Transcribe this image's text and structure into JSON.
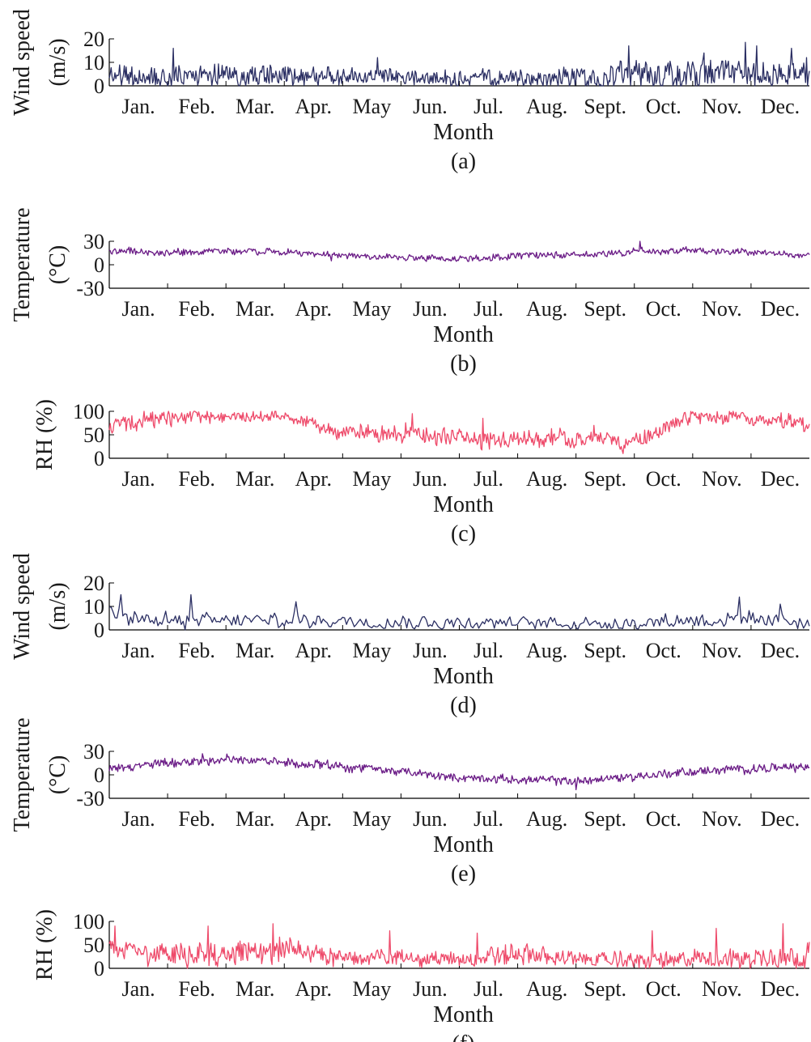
{
  "figure": {
    "month_ticks": [
      "Jan.",
      "Feb.",
      "Mar.",
      "Apr.",
      "May",
      "Jun.",
      "Jul.",
      "Aug.",
      "Sept.",
      "Oct.",
      "Nov.",
      "Dec."
    ],
    "colors": {
      "wind": "#2b2f63",
      "temperature": "#6a1b86",
      "rh": "#ee4a6a"
    }
  },
  "chart_data": [
    {
      "type": "line",
      "label": "(a)",
      "ylabel": [
        "Wind speed",
        "(m/s)"
      ],
      "xlabel": "Month",
      "yticks": [
        "20",
        "10",
        "0"
      ],
      "ylim": [
        0,
        20
      ],
      "x_range": [
        0,
        12
      ],
      "series": [
        {
          "color": "wind",
          "baseline": [
            4,
            4,
            4.5,
            4,
            4,
            3.5,
            3,
            3,
            4,
            5,
            5.5,
            5,
            4.5
          ],
          "amplitude": [
            4,
            4.5,
            4,
            4,
            3.5,
            3,
            3,
            3,
            4,
            5.5,
            6,
            5,
            4.5
          ],
          "peaks": [
            [
              1.1,
              16
            ],
            [
              4.6,
              12
            ],
            [
              8.9,
              17
            ],
            [
              10.2,
              14
            ],
            [
              10.9,
              18.5
            ],
            [
              11.1,
              17
            ],
            [
              11.7,
              16
            ],
            [
              11.95,
              12
            ]
          ],
          "points_per_month": 62
        }
      ]
    },
    {
      "type": "line",
      "label": "(b)",
      "ylabel": [
        "Temperature",
        "(°C)"
      ],
      "xlabel": "Month",
      "yticks": [
        "30",
        "0",
        "-30"
      ],
      "ylim": [
        -30,
        30
      ],
      "x_range": [
        0,
        12
      ],
      "series": [
        {
          "color": "temperature",
          "baseline": [
            18,
            15,
            18,
            16,
            12,
            9,
            8,
            11,
            13,
            17,
            18,
            16,
            12
          ],
          "amplitude": [
            4,
            4,
            4,
            3.5,
            3.5,
            3.5,
            4,
            4,
            4,
            4,
            4,
            3.5,
            3
          ],
          "peaks": [
            [
              9.1,
              32
            ],
            [
              3.8,
              5
            ]
          ],
          "points_per_month": 62
        }
      ]
    },
    {
      "type": "line",
      "label": "(c)",
      "ylabel": [
        "RH (%)"
      ],
      "xlabel": "Month",
      "yticks": [
        "100",
        "50",
        "0"
      ],
      "ylim": [
        0,
        100
      ],
      "x_range": [
        0,
        12
      ],
      "series": [
        {
          "color": "rh",
          "baseline": [
            68,
            86,
            88,
            90,
            55,
            55,
            42,
            42,
            42,
            38,
            88,
            86,
            70
          ],
          "amplitude": [
            20,
            14,
            12,
            12,
            15,
            18,
            18,
            16,
            16,
            16,
            12,
            12,
            15
          ],
          "peaks": [
            [
              0.6,
              100
            ],
            [
              5.2,
              95
            ],
            [
              6.4,
              85
            ],
            [
              8.3,
              70
            ],
            [
              8.8,
              10
            ]
          ],
          "points_per_month": 62
        }
      ]
    },
    {
      "type": "line",
      "label": "(d)",
      "ylabel": [
        "Wind speed",
        "(m/s)"
      ],
      "xlabel": "Month",
      "yticks": [
        "20",
        "10",
        "0"
      ],
      "ylim": [
        0,
        20
      ],
      "x_range": [
        0,
        12
      ],
      "series": [
        {
          "color": "wind",
          "baseline": [
            7,
            4,
            4,
            4,
            4,
            3.5,
            3,
            3,
            3,
            3,
            4.5,
            4,
            4
          ],
          "amplitude": [
            3.5,
            3,
            2.5,
            3,
            2.5,
            2.5,
            2.5,
            2.5,
            2.5,
            2.5,
            3,
            3,
            3
          ],
          "peaks": [
            [
              0.2,
              15
            ],
            [
              1.4,
              15
            ],
            [
              3.2,
              12
            ],
            [
              10.8,
              14
            ],
            [
              11.5,
              11
            ]
          ],
          "points_per_month": 30
        }
      ]
    },
    {
      "type": "line",
      "label": "(e)",
      "ylabel": [
        "Temperature",
        "(°C)"
      ],
      "xlabel": "Month",
      "yticks": [
        "30",
        "0",
        "-30"
      ],
      "ylim": [
        -30,
        30
      ],
      "x_range": [
        0,
        12
      ],
      "series": [
        {
          "color": "temperature",
          "baseline": [
            8,
            15,
            20,
            16,
            10,
            4,
            -4,
            -6,
            -8,
            -2,
            4,
            8,
            10
          ],
          "amplitude": [
            5,
            5,
            5,
            5,
            5,
            4.5,
            4.5,
            4.5,
            5,
            5,
            5,
            5,
            5
          ],
          "peaks": [
            [
              1.6,
              27
            ],
            [
              8.0,
              -19
            ]
          ],
          "points_per_month": 62
        }
      ]
    },
    {
      "type": "line",
      "label": "(f)",
      "ylabel": [
        "RH (%)"
      ],
      "xlabel": "Month",
      "yticks": [
        "100",
        "50",
        "0"
      ],
      "ylim": [
        0,
        100
      ],
      "x_range": [
        0,
        12
      ],
      "series": [
        {
          "color": "rh",
          "baseline": [
            40,
            28,
            32,
            40,
            22,
            24,
            18,
            30,
            20,
            16,
            18,
            22,
            28
          ],
          "amplitude": [
            22,
            20,
            25,
            25,
            16,
            15,
            14,
            22,
            14,
            16,
            18,
            20,
            24
          ],
          "peaks": [
            [
              0.1,
              90
            ],
            [
              1.7,
              90
            ],
            [
              2.8,
              95
            ],
            [
              4.8,
              80
            ],
            [
              6.3,
              75
            ],
            [
              9.3,
              80
            ],
            [
              10.4,
              85
            ],
            [
              11.55,
              95
            ]
          ],
          "points_per_month": 62
        }
      ]
    }
  ]
}
